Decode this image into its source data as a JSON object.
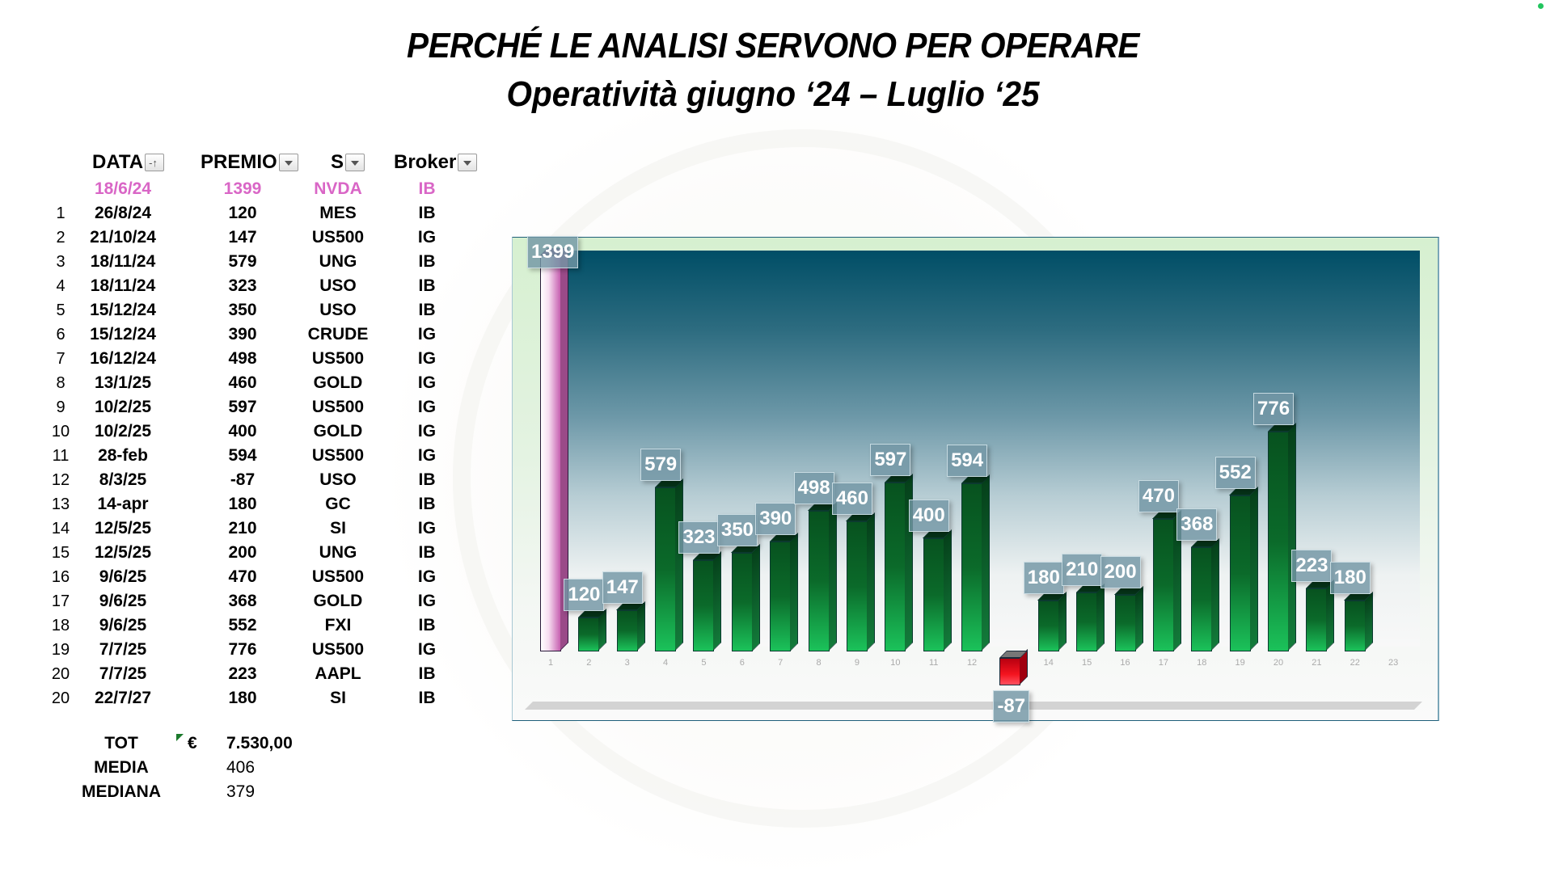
{
  "title": {
    "line1": "PERCHÉ LE ANALISI SERVONO PER OPERARE",
    "line2": "Operatività giugno ‘24 – Luglio ‘25"
  },
  "table": {
    "headers": {
      "data": "DATA",
      "premio": "PREMIO",
      "s": "S",
      "broker": "Broker"
    },
    "header_icons": {
      "data": "sort-ascending-filter-icon",
      "premio": "filter-dropdown-icon",
      "s": "filter-dropdown-icon",
      "broker": "filter-dropdown-icon"
    },
    "rows": [
      {
        "n": "",
        "data": "18/6/24",
        "premio": "1399",
        "s": "NVDA",
        "broker": "IB"
      },
      {
        "n": "1",
        "data": "26/8/24",
        "premio": "120",
        "s": "MES",
        "broker": "IB"
      },
      {
        "n": "2",
        "data": "21/10/24",
        "premio": "147",
        "s": "US500",
        "broker": "IG"
      },
      {
        "n": "3",
        "data": "18/11/24",
        "premio": "579",
        "s": "UNG",
        "broker": "IB"
      },
      {
        "n": "4",
        "data": "18/11/24",
        "premio": "323",
        "s": "USO",
        "broker": "IB"
      },
      {
        "n": "5",
        "data": "15/12/24",
        "premio": "350",
        "s": "USO",
        "broker": "IB"
      },
      {
        "n": "6",
        "data": "15/12/24",
        "premio": "390",
        "s": "CRUDE",
        "broker": "IG"
      },
      {
        "n": "7",
        "data": "16/12/24",
        "premio": "498",
        "s": "US500",
        "broker": "IG"
      },
      {
        "n": "8",
        "data": "13/1/25",
        "premio": "460",
        "s": "GOLD",
        "broker": "IG"
      },
      {
        "n": "9",
        "data": "10/2/25",
        "premio": "597",
        "s": "US500",
        "broker": "IG"
      },
      {
        "n": "10",
        "data": "10/2/25",
        "premio": "400",
        "s": "GOLD",
        "broker": "IG"
      },
      {
        "n": "11",
        "data": "28-feb",
        "premio": "594",
        "s": "US500",
        "broker": "IG"
      },
      {
        "n": "12",
        "data": "8/3/25",
        "premio": "-87",
        "s": "USO",
        "broker": "IB"
      },
      {
        "n": "13",
        "data": "14-apr",
        "premio": "180",
        "s": "GC",
        "broker": "IB"
      },
      {
        "n": "14",
        "data": "12/5/25",
        "premio": "210",
        "s": "SI",
        "broker": "IG"
      },
      {
        "n": "15",
        "data": "12/5/25",
        "premio": "200",
        "s": "UNG",
        "broker": "IB"
      },
      {
        "n": "16",
        "data": "9/6/25",
        "premio": "470",
        "s": "US500",
        "broker": "IG"
      },
      {
        "n": "17",
        "data": "9/6/25",
        "premio": "368",
        "s": "GOLD",
        "broker": "IG"
      },
      {
        "n": "18",
        "data": "9/6/25",
        "premio": "552",
        "s": "FXI",
        "broker": "IB"
      },
      {
        "n": "19",
        "data": "7/7/25",
        "premio": "776",
        "s": "US500",
        "broker": "IG"
      },
      {
        "n": "20",
        "data": "7/7/25",
        "premio": "223",
        "s": "AAPL",
        "broker": "IB"
      },
      {
        "n": "20",
        "data": "22/7/27",
        "premio": "180",
        "s": "SI",
        "broker": "IB"
      }
    ],
    "highlight_color": "#d966c6"
  },
  "summary": {
    "tot_label": "TOT",
    "currency": "€",
    "tot_value": "7.530,00",
    "media_label": "MEDIA",
    "media_value": "406",
    "mediana_label": "MEDIANA",
    "mediana_value": "379"
  },
  "chart_data": {
    "type": "bar",
    "title": "",
    "xlabel": "",
    "ylabel": "",
    "categories": [
      "1",
      "2",
      "3",
      "4",
      "5",
      "6",
      "7",
      "8",
      "9",
      "10",
      "11",
      "12",
      "13",
      "14",
      "15",
      "16",
      "17",
      "18",
      "19",
      "20",
      "21",
      "22",
      "23"
    ],
    "values": [
      1399,
      120,
      147,
      579,
      323,
      350,
      390,
      498,
      460,
      597,
      400,
      594,
      -87,
      180,
      210,
      200,
      470,
      368,
      552,
      776,
      223,
      180,
      null
    ],
    "data_labels": [
      "1399",
      "120",
      "147",
      "579",
      "323",
      "350",
      "390",
      "498",
      "460",
      "597",
      "400",
      "594",
      "-87",
      "180",
      "210",
      "200",
      "470",
      "368",
      "552",
      "776",
      "223",
      "180",
      ""
    ],
    "ylim": [
      -100,
      1400
    ],
    "grid": false,
    "legend": null,
    "style": "3d-column",
    "colors": {
      "first_bar": "#c65fb0",
      "positive": "#0b6a2a",
      "negative": "#f4141f",
      "label_box": "#7396a5",
      "plot_top": "#004e66",
      "frame_bg": "#d6f0d0"
    }
  }
}
